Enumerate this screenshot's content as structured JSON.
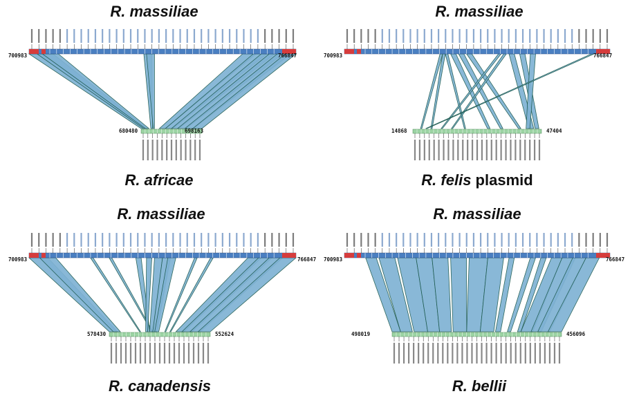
{
  "panels": [
    {
      "top_genome": "R. massiliae",
      "bottom_genome": "R. africae",
      "bottom_suffix": "",
      "top_start": "700983",
      "top_end": "766847",
      "bottom_start": "680480",
      "bottom_end": "698163",
      "pattern": "africae"
    },
    {
      "top_genome": "R. massiliae",
      "bottom_genome": "R. felis",
      "bottom_suffix": " plasmid",
      "top_start": "700983",
      "top_end": "766847",
      "bottom_start": "14868",
      "bottom_end": "47404",
      "pattern": "felis"
    },
    {
      "top_genome": "R. massiliae",
      "bottom_genome": "R. canadensis",
      "bottom_suffix": "",
      "top_start": "700983",
      "top_end": "766847",
      "bottom_start": "578430",
      "bottom_end": "552624",
      "pattern": "canadensis"
    },
    {
      "top_genome": "R. massiliae",
      "bottom_genome": "R. bellii",
      "bottom_suffix": "",
      "top_start": "700983",
      "top_end": "766847",
      "bottom_start": "498019",
      "bottom_end": "456096",
      "pattern": "bellii"
    }
  ],
  "colors": {
    "top_track": "#4a7fc1",
    "top_track_end": "#d63c3c",
    "bottom_track": "#9bd3a3",
    "band_fill": "#7fb2d4",
    "band_stroke": "#1c5a4e",
    "label_black": "#111111",
    "label_blue": "#2e63a8"
  }
}
